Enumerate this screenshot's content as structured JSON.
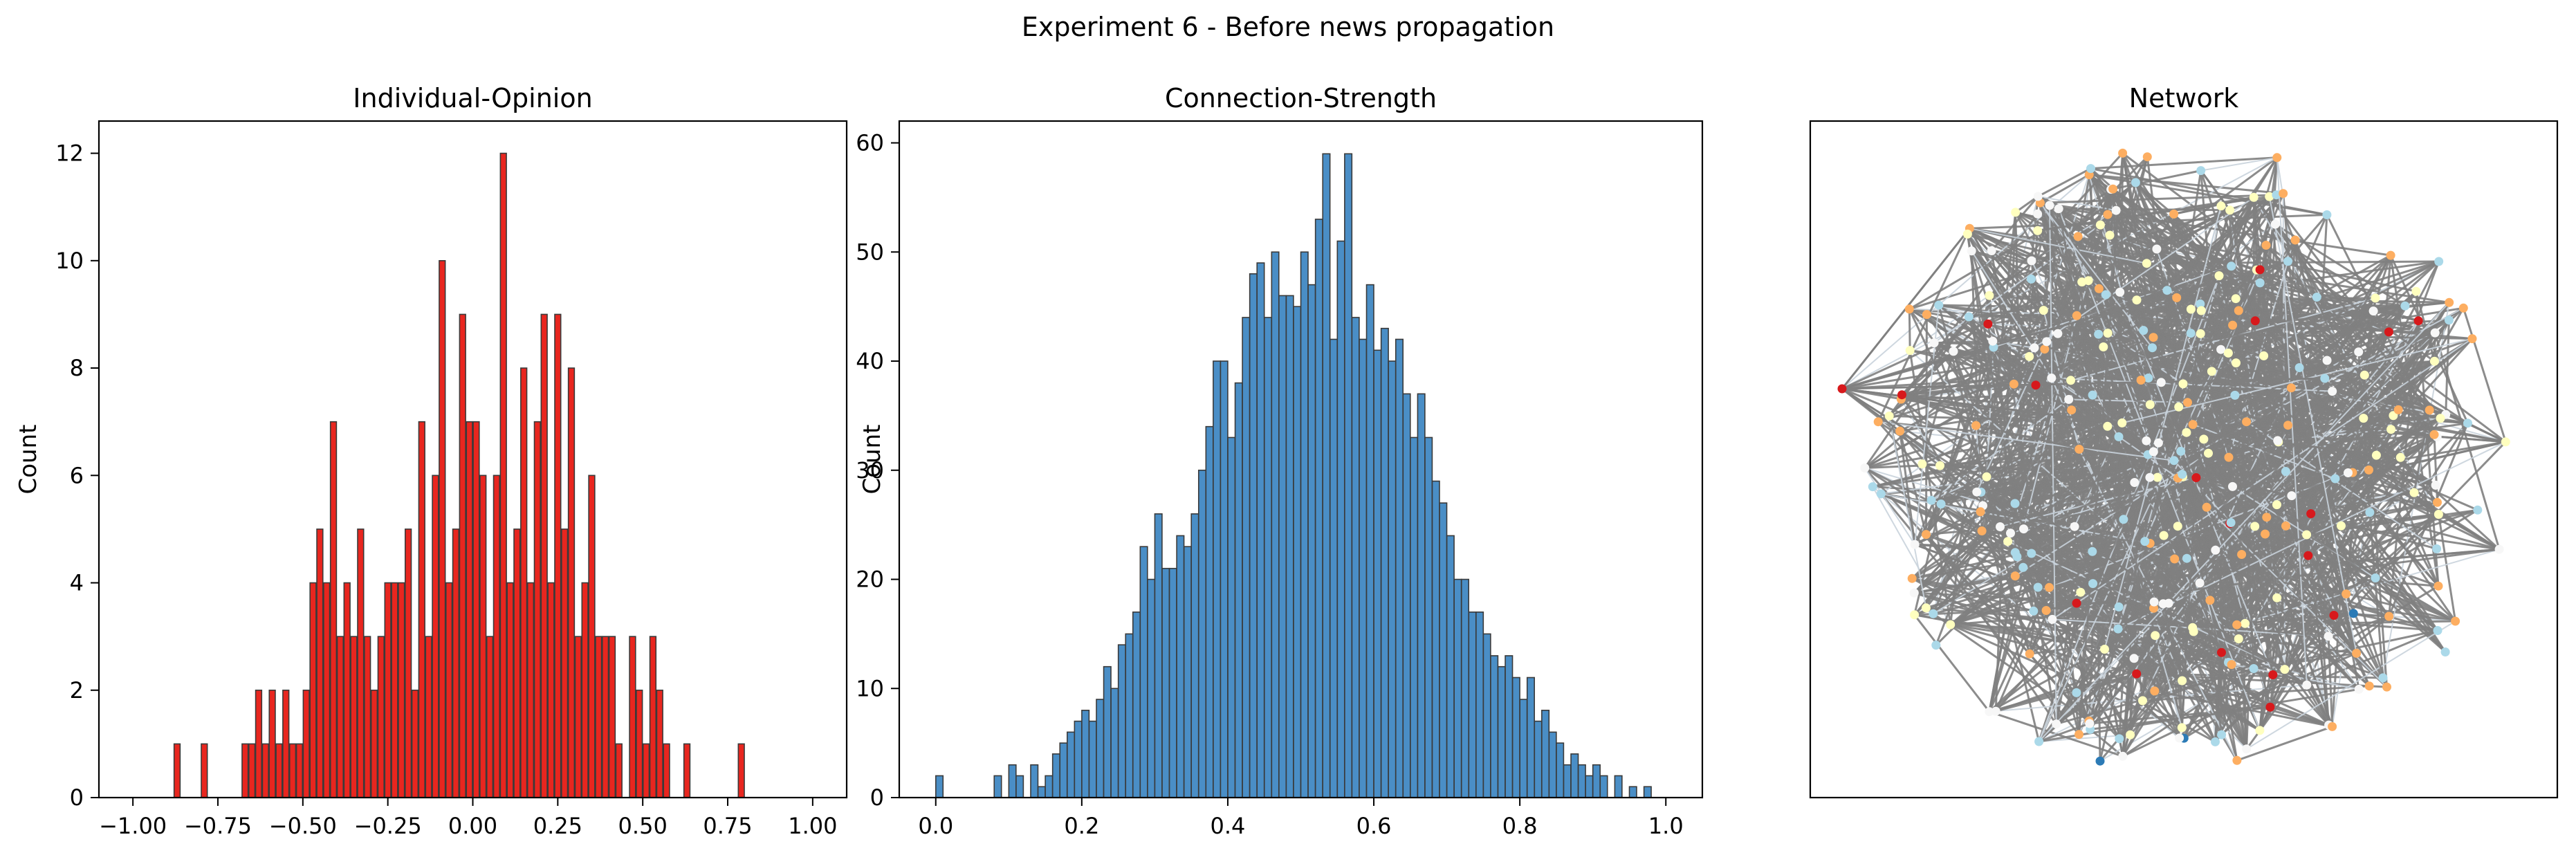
{
  "figure": {
    "title": "Experiment 6 - Before news propagation"
  },
  "chart_data": [
    {
      "type": "bar",
      "title": "Individual-Opinion",
      "xlabel": "",
      "ylabel": "Count",
      "xlim": [
        -1.1,
        1.1
      ],
      "ylim": [
        0,
        12.6
      ],
      "xticks": [
        -1.0,
        -0.75,
        -0.5,
        -0.25,
        0.0,
        0.25,
        0.5,
        0.75,
        1.0
      ],
      "xtick_labels": [
        "−1.00",
        "−0.75",
        "−0.50",
        "−0.25",
        "0.00",
        "0.25",
        "0.50",
        "0.75",
        "1.00"
      ],
      "yticks": [
        0,
        2,
        4,
        6,
        8,
        10,
        12
      ],
      "ytick_labels": [
        "0",
        "2",
        "4",
        "6",
        "8",
        "10",
        "12"
      ],
      "bin_width": 0.0177,
      "bins": [
        [
          -0.87,
          1
        ],
        [
          -0.79,
          1
        ],
        [
          -0.67,
          1
        ],
        [
          -0.65,
          1
        ],
        [
          -0.63,
          2
        ],
        [
          -0.61,
          1
        ],
        [
          -0.59,
          2
        ],
        [
          -0.57,
          1
        ],
        [
          -0.55,
          2
        ],
        [
          -0.53,
          1
        ],
        [
          -0.51,
          1
        ],
        [
          -0.49,
          2
        ],
        [
          -0.47,
          4
        ],
        [
          -0.45,
          5
        ],
        [
          -0.43,
          4
        ],
        [
          -0.41,
          7
        ],
        [
          -0.39,
          3
        ],
        [
          -0.37,
          4
        ],
        [
          -0.35,
          3
        ],
        [
          -0.33,
          5
        ],
        [
          -0.31,
          3
        ],
        [
          -0.29,
          2
        ],
        [
          -0.27,
          3
        ],
        [
          -0.25,
          4
        ],
        [
          -0.23,
          4
        ],
        [
          -0.21,
          4
        ],
        [
          -0.19,
          5
        ],
        [
          -0.17,
          2
        ],
        [
          -0.15,
          7
        ],
        [
          -0.13,
          3
        ],
        [
          -0.11,
          6
        ],
        [
          -0.09,
          10
        ],
        [
          -0.07,
          4
        ],
        [
          -0.05,
          5
        ],
        [
          -0.03,
          9
        ],
        [
          -0.01,
          7
        ],
        [
          0.01,
          7
        ],
        [
          0.03,
          6
        ],
        [
          0.05,
          3
        ],
        [
          0.07,
          6
        ],
        [
          0.09,
          12
        ],
        [
          0.11,
          4
        ],
        [
          0.13,
          5
        ],
        [
          0.15,
          8
        ],
        [
          0.17,
          4
        ],
        [
          0.19,
          7
        ],
        [
          0.21,
          9
        ],
        [
          0.23,
          4
        ],
        [
          0.25,
          9
        ],
        [
          0.27,
          5
        ],
        [
          0.29,
          8
        ],
        [
          0.31,
          3
        ],
        [
          0.33,
          4
        ],
        [
          0.35,
          6
        ],
        [
          0.37,
          3
        ],
        [
          0.39,
          3
        ],
        [
          0.41,
          3
        ],
        [
          0.43,
          1
        ],
        [
          0.47,
          3
        ],
        [
          0.49,
          2
        ],
        [
          0.51,
          1
        ],
        [
          0.53,
          3
        ],
        [
          0.55,
          2
        ],
        [
          0.57,
          1
        ],
        [
          0.63,
          1
        ],
        [
          0.79,
          1
        ]
      ],
      "color": "#e8261f"
    },
    {
      "type": "bar",
      "title": "Connection-Strength",
      "xlabel": "",
      "ylabel": "Count",
      "xlim": [
        -0.05,
        1.05
      ],
      "ylim": [
        0,
        62
      ],
      "xticks": [
        0.0,
        0.2,
        0.4,
        0.6,
        0.8,
        1.0
      ],
      "xtick_labels": [
        "0.0",
        "0.2",
        "0.4",
        "0.6",
        "0.8",
        "1.0"
      ],
      "yticks": [
        0,
        10,
        20,
        30,
        40,
        50,
        60
      ],
      "ytick_labels": [
        "0",
        "10",
        "20",
        "30",
        "40",
        "50",
        "60"
      ],
      "bin_width": 0.0099,
      "bins": [
        [
          0.005,
          2
        ],
        [
          0.085,
          2
        ],
        [
          0.105,
          3
        ],
        [
          0.115,
          2
        ],
        [
          0.135,
          3
        ],
        [
          0.145,
          1
        ],
        [
          0.155,
          2
        ],
        [
          0.165,
          4
        ],
        [
          0.175,
          5
        ],
        [
          0.185,
          6
        ],
        [
          0.195,
          7
        ],
        [
          0.205,
          8
        ],
        [
          0.215,
          7
        ],
        [
          0.225,
          9
        ],
        [
          0.235,
          12
        ],
        [
          0.245,
          10
        ],
        [
          0.255,
          14
        ],
        [
          0.265,
          15
        ],
        [
          0.275,
          17
        ],
        [
          0.285,
          23
        ],
        [
          0.295,
          20
        ],
        [
          0.305,
          26
        ],
        [
          0.315,
          21
        ],
        [
          0.325,
          21
        ],
        [
          0.335,
          24
        ],
        [
          0.345,
          23
        ],
        [
          0.355,
          26
        ],
        [
          0.365,
          30
        ],
        [
          0.375,
          34
        ],
        [
          0.385,
          40
        ],
        [
          0.395,
          40
        ],
        [
          0.405,
          33
        ],
        [
          0.415,
          38
        ],
        [
          0.425,
          44
        ],
        [
          0.435,
          48
        ],
        [
          0.445,
          49
        ],
        [
          0.455,
          44
        ],
        [
          0.465,
          50
        ],
        [
          0.475,
          46
        ],
        [
          0.485,
          46
        ],
        [
          0.495,
          45
        ],
        [
          0.505,
          50
        ],
        [
          0.515,
          47
        ],
        [
          0.525,
          53
        ],
        [
          0.535,
          59
        ],
        [
          0.545,
          42
        ],
        [
          0.555,
          51
        ],
        [
          0.565,
          59
        ],
        [
          0.575,
          44
        ],
        [
          0.585,
          42
        ],
        [
          0.595,
          47
        ],
        [
          0.605,
          41
        ],
        [
          0.615,
          43
        ],
        [
          0.625,
          40
        ],
        [
          0.635,
          42
        ],
        [
          0.645,
          37
        ],
        [
          0.655,
          33
        ],
        [
          0.665,
          37
        ],
        [
          0.675,
          33
        ],
        [
          0.685,
          29
        ],
        [
          0.695,
          27
        ],
        [
          0.705,
          24
        ],
        [
          0.715,
          20
        ],
        [
          0.725,
          20
        ],
        [
          0.735,
          17
        ],
        [
          0.745,
          17
        ],
        [
          0.755,
          15
        ],
        [
          0.765,
          13
        ],
        [
          0.775,
          12
        ],
        [
          0.785,
          13
        ],
        [
          0.795,
          11
        ],
        [
          0.805,
          9
        ],
        [
          0.815,
          11
        ],
        [
          0.825,
          7
        ],
        [
          0.835,
          8
        ],
        [
          0.845,
          6
        ],
        [
          0.855,
          5
        ],
        [
          0.865,
          3
        ],
        [
          0.875,
          4
        ],
        [
          0.885,
          3
        ],
        [
          0.895,
          2
        ],
        [
          0.905,
          3
        ],
        [
          0.915,
          2
        ],
        [
          0.935,
          2
        ],
        [
          0.955,
          1
        ],
        [
          0.975,
          1
        ]
      ],
      "color": "#4a8ec6"
    },
    {
      "type": "network",
      "title": "Network",
      "node_count": 320,
      "edge_color": "#808080",
      "node_colors": [
        "#d7191c",
        "#fdae61",
        "#ffffbf",
        "#abd9e9",
        "#2c7bb6",
        "#f7f7f7"
      ],
      "highlighted_nodes": [
        "red node at far left"
      ]
    }
  ]
}
